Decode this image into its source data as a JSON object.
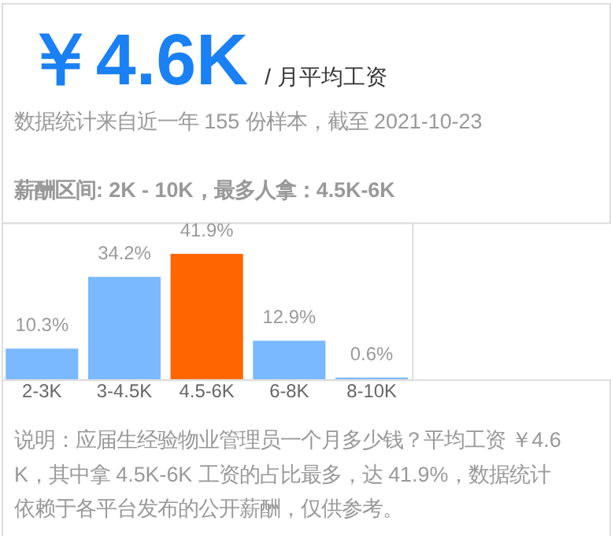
{
  "chart_data": {
    "type": "bar",
    "title": "￥4.6K",
    "subtitle": "/ 月平均工资",
    "annotations": [
      "数据统计来自近一年 155 份样本，截至 2021-10-23",
      "薪酬区间: 2K - 10K，最多人拿：4.5K-6K",
      "说明：应届生经验物业管理员一个月多少钱？平均工资 ￥4.6K，其中拿 4.5K-6K 工资的占比最多，达 41.9%，数据统计依赖于各平台发布的公开薪酬，仅供参考。"
    ],
    "categories": [
      "2-3K",
      "3-4.5K",
      "4.5-6K",
      "6-8K",
      "8-10K"
    ],
    "values": [
      10.3,
      34.2,
      41.9,
      12.9,
      0.6
    ],
    "value_labels": [
      "10.3%",
      "34.2%",
      "41.9%",
      "12.9%",
      "0.6%"
    ],
    "colors": [
      "#7ab8ff",
      "#7ab8ff",
      "#ff6600",
      "#7ab8ff",
      "#7ab8ff"
    ],
    "grid": false,
    "legend": false
  }
}
